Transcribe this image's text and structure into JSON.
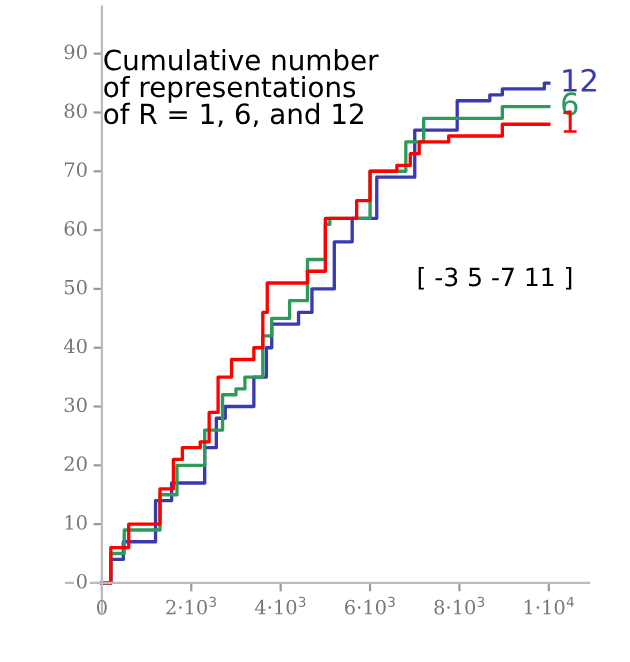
{
  "chart_data": {
    "type": "step",
    "title": "Cumulative number\nof representations\nof R = 1, 6, and 12",
    "annotations": [
      "[ -3 5 -7 11 ]"
    ],
    "xlim": [
      -800,
      10900
    ],
    "ylim": [
      -5,
      98
    ],
    "xticks": [
      0,
      {
        "value": 2000,
        "label": "2·10$^{3}$"
      },
      {
        "value": 4000,
        "label": "4·10$^{3}$"
      },
      {
        "value": 6000,
        "label": "6·10$^{3}$"
      },
      {
        "value": 8000,
        "label": "8·10$^{3}$"
      },
      {
        "value": 10000,
        "label": "1·10$^{4}$"
      }
    ],
    "yticks": [
      0,
      10,
      20,
      30,
      40,
      50,
      60,
      70,
      80,
      90
    ],
    "grid": false,
    "legend": false,
    "series": [
      {
        "name": "12",
        "color": "#3a3ab0",
        "x": [
          0,
          200,
          480,
          1000,
          1200,
          1560,
          2000,
          2300,
          2560,
          2760,
          3160,
          3400,
          3680,
          3800,
          4200,
          4400,
          4700,
          4950,
          5200,
          5600,
          6150,
          6550,
          7000,
          7760,
          7950,
          8680,
          8960,
          9900,
          10000
        ],
        "values": [
          0,
          4,
          7,
          7,
          14,
          17,
          17,
          23,
          28,
          30,
          30,
          35,
          40,
          44,
          44,
          46,
          50,
          50,
          58,
          62,
          69,
          69,
          77,
          77,
          82,
          83,
          84,
          85,
          85
        ]
      },
      {
        "name": "6",
        "color": "#2e9a5a",
        "x": [
          0,
          200,
          500,
          1000,
          1300,
          1680,
          2000,
          2300,
          2700,
          3000,
          3200,
          3600,
          3800,
          4200,
          4600,
          5000,
          5100,
          5500,
          6000,
          6500,
          6800,
          7200,
          8960,
          10000
        ],
        "values": [
          0,
          5,
          9,
          9,
          15,
          20,
          20,
          26,
          32,
          33,
          35,
          42,
          45,
          48,
          55,
          61,
          62,
          62,
          70,
          70,
          75,
          79,
          81,
          81
        ]
      },
      {
        "name": "1",
        "color": "#ff0000",
        "x": [
          0,
          200,
          600,
          1000,
          1300,
          1600,
          1800,
          2200,
          2400,
          2600,
          2900,
          3300,
          3400,
          3600,
          3700,
          4100,
          4600,
          5000,
          5560,
          5700,
          6000,
          6600,
          6900,
          7100,
          7760,
          8960,
          10000
        ],
        "values": [
          0,
          6,
          10,
          10,
          16,
          21,
          23,
          24,
          29,
          35,
          38,
          38,
          40,
          46,
          51,
          51,
          53,
          62,
          62,
          65,
          70,
          71,
          73,
          75,
          76,
          78,
          78
        ]
      }
    ]
  }
}
